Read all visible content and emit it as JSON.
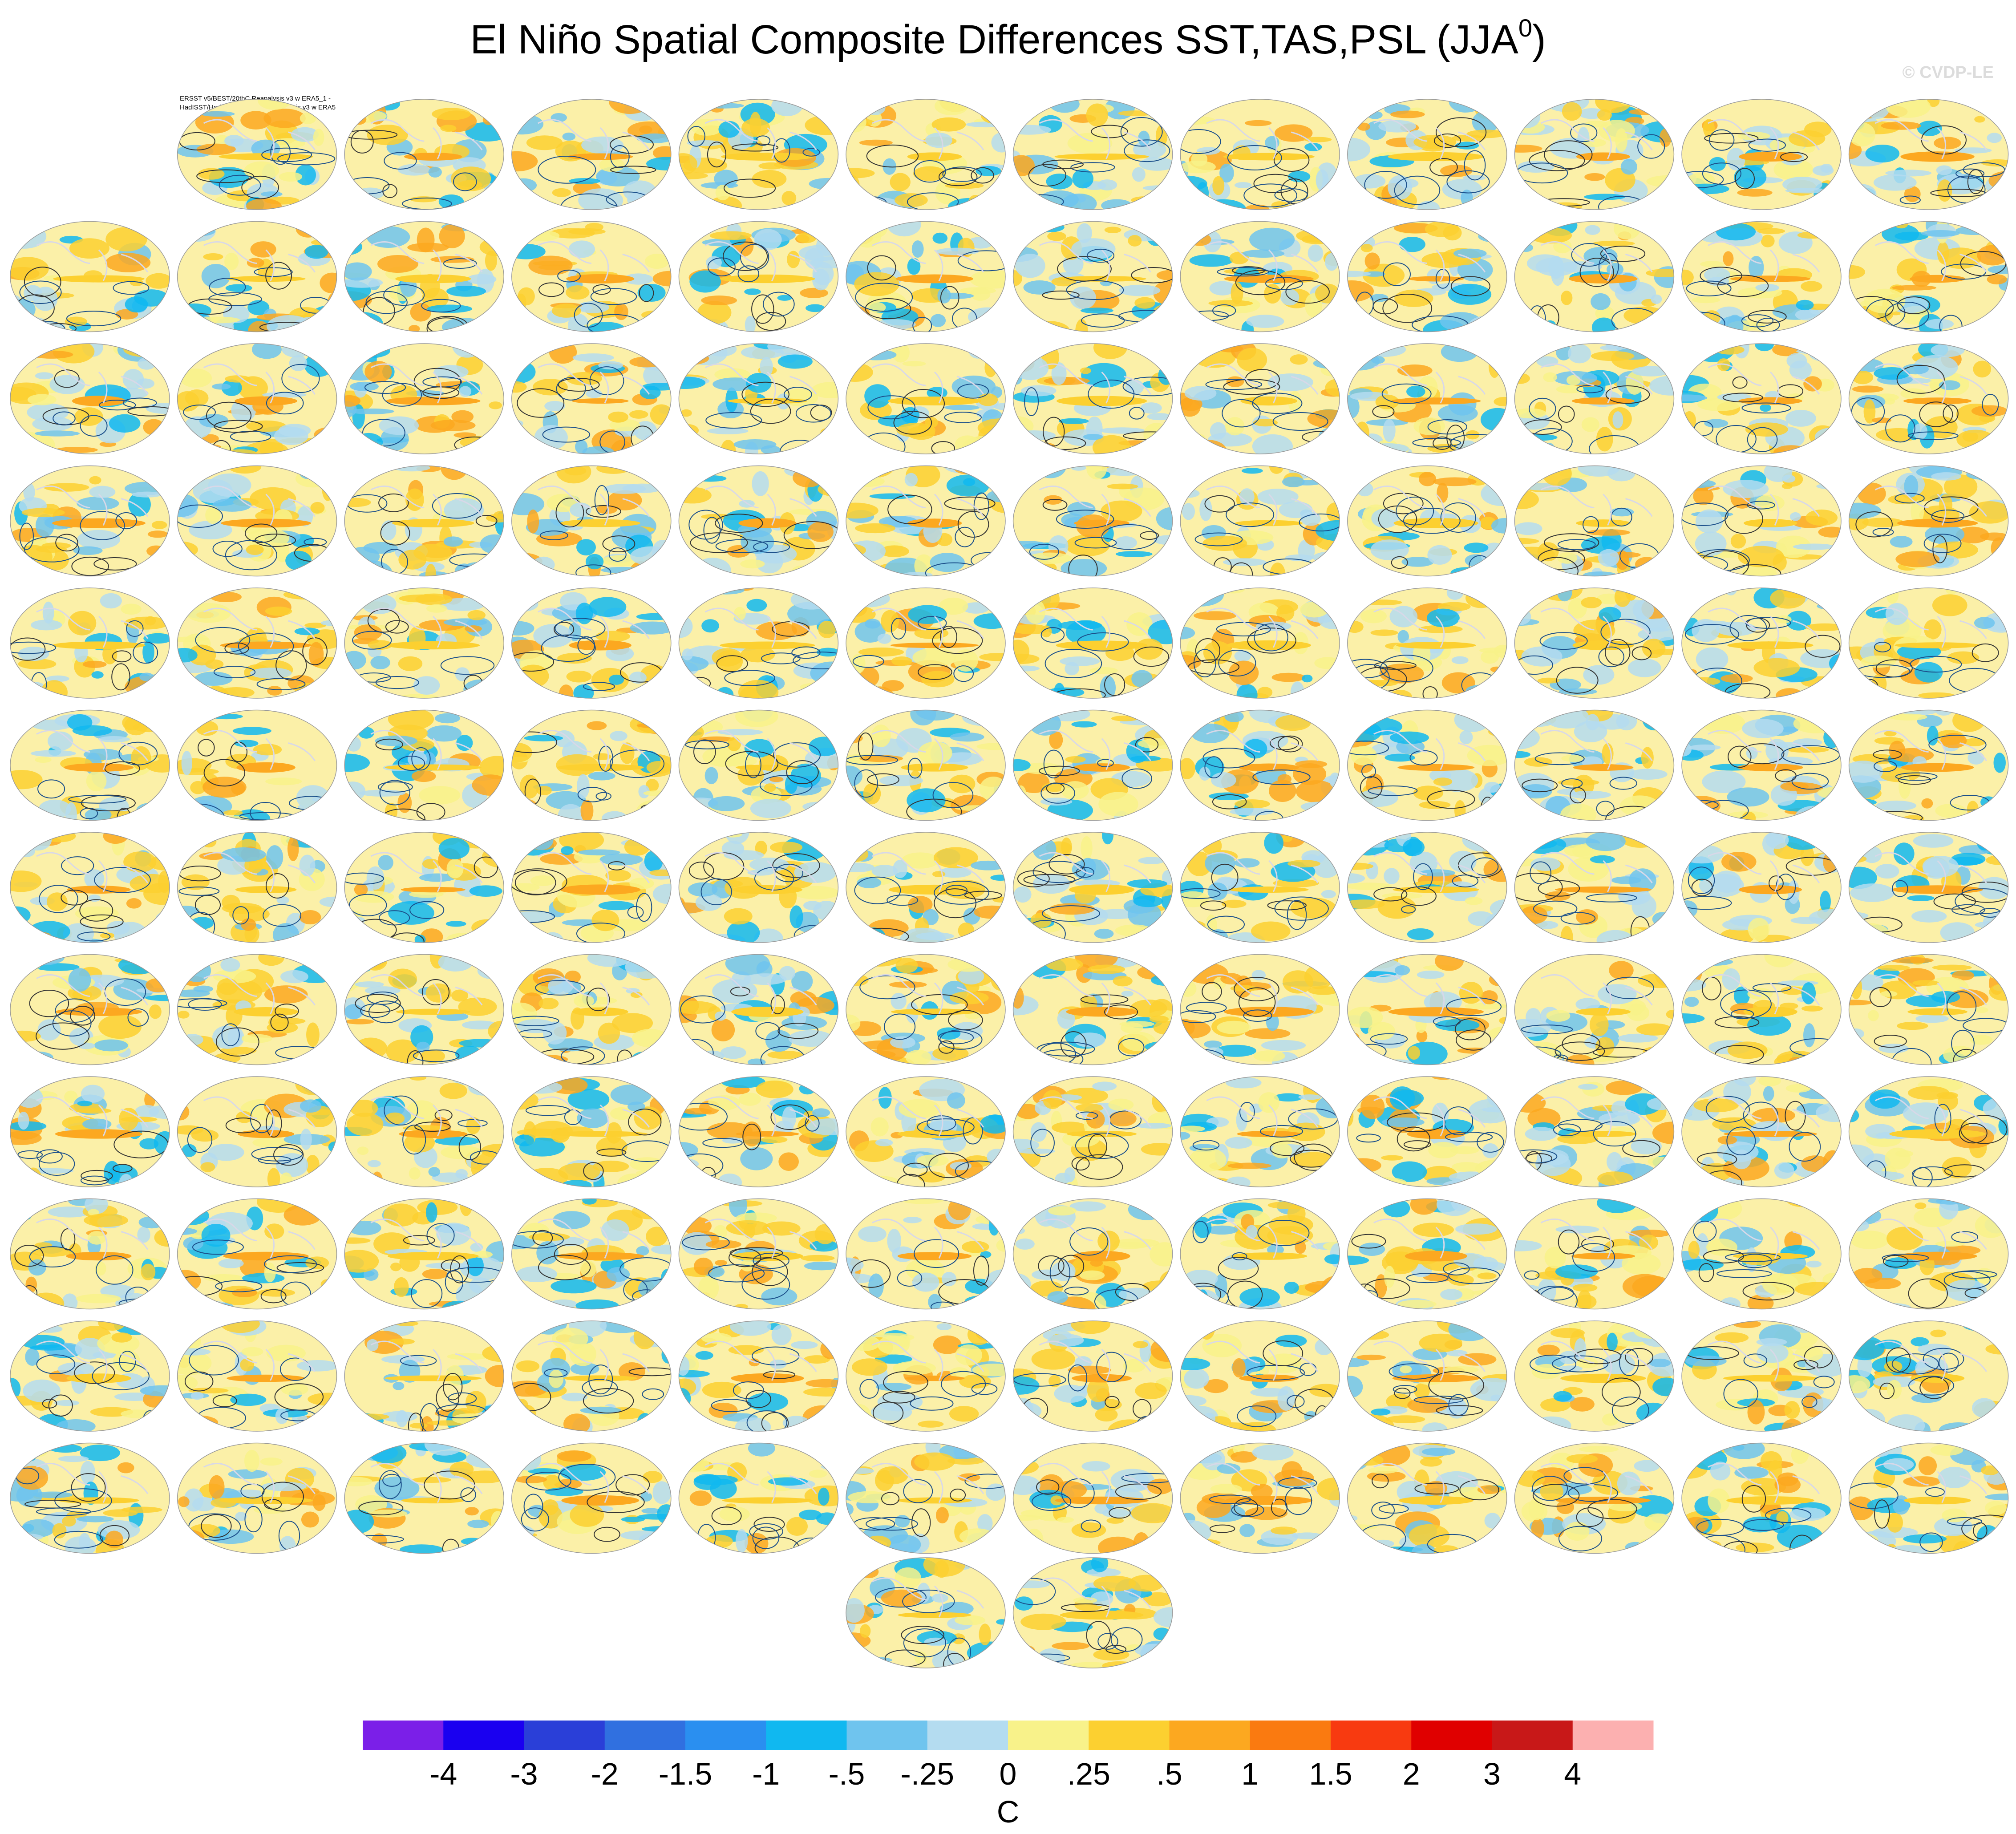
{
  "header": {
    "title": "El Niño Spatial Composite Differences SST,TAS,PSL (JJA",
    "title_superscript": "0",
    "title_end": ")",
    "watermark": "© CVDP-LE"
  },
  "first_panel": {
    "title_lines": [
      "ERSST v5/BEST/20thC Reanalysis v3 w ERA5_1 -",
      "HadISST/HadCRUTv5/20thC Reanalysis v3 w ERA5"
    ]
  },
  "colorbar": {
    "colors": [
      "#7b1fe8",
      "#1a00f0",
      "#2a3fd8",
      "#3070e0",
      "#2a8ff0",
      "#10b8f0",
      "#6fc4ee",
      "#b4dcf0",
      "#f8f28a",
      "#fcd030",
      "#fca820",
      "#fa7a10",
      "#f83a10",
      "#e00000",
      "#c81818",
      "#fcb0b0"
    ],
    "labels": [
      -4,
      -3,
      -2,
      -1.5,
      -1,
      {
        "value": -0.5,
        "label": "-.5"
      },
      {
        "value": -0.25,
        "label": "-.25"
      },
      0,
      {
        "value": 0.25,
        "label": ".25"
      },
      {
        "value": 0.5,
        "label": ".5"
      },
      1,
      1.5,
      2,
      3,
      4
    ],
    "unit": "C"
  }
}
